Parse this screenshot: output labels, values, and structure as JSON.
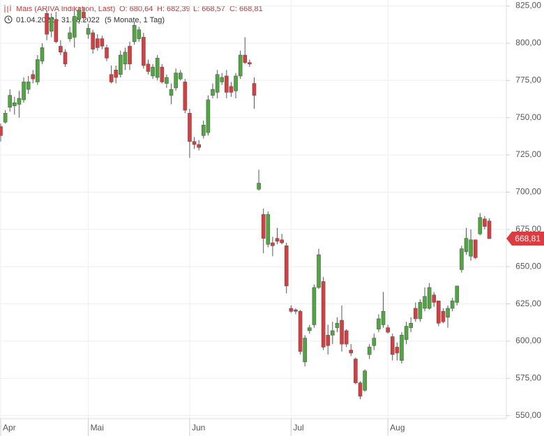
{
  "chart_data": {
    "type": "candlestick",
    "title": "Mais (ARIVA Indikation, Last)",
    "ohlc_labels": [
      "O: 680,64",
      "H: 682,39",
      "L: 668,57",
      "C: 668,81"
    ],
    "subtitle": "01.04.2022 - 31.08.2022",
    "period": "(5 Monate, 1 Tag)",
    "last_price_label": "668,81",
    "up_color": "#4caa3c",
    "down_color": "#df3b3f",
    "grid": true,
    "ylim": [
      548,
      829
    ],
    "yticks": [
      {
        "value": 550,
        "label": "550,00"
      },
      {
        "value": 575,
        "label": "575,00"
      },
      {
        "value": 600,
        "label": "600,00"
      },
      {
        "value": 625,
        "label": "625,00"
      },
      {
        "value": 650,
        "label": "650,00"
      },
      {
        "value": 675,
        "label": "675,00"
      },
      {
        "value": 700,
        "label": "700,00"
      },
      {
        "value": 725,
        "label": "725,00"
      },
      {
        "value": 750,
        "label": "750,00"
      },
      {
        "value": 775,
        "label": "775,00"
      },
      {
        "value": 800,
        "label": "800,00"
      },
      {
        "value": 825,
        "label": "825,00"
      }
    ],
    "xlim": [
      -0.15,
      109.7
    ],
    "xticks": [
      {
        "value": 0,
        "label": "Apr"
      },
      {
        "value": 19,
        "label": "Mai"
      },
      {
        "value": 41,
        "label": "Jun"
      },
      {
        "value": 63,
        "label": "Jul"
      },
      {
        "value": 84,
        "label": "Aug"
      }
    ],
    "open": [
      744,
      747,
      757,
      758,
      759,
      762,
      769,
      779,
      774,
      788,
      820,
      808,
      816,
      798,
      794,
      803,
      804,
      816,
      821,
      806,
      807,
      803,
      803,
      797,
      779,
      782,
      779,
      786,
      798,
      801,
      803,
      804,
      786,
      778,
      777,
      784,
      773,
      765,
      770,
      776,
      774,
      753,
      734,
      732,
      738,
      740,
      765,
      767,
      774,
      778,
      771,
      768,
      778,
      792,
      787,
      773,
      702,
      685,
      665,
      666,
      669,
      668,
      664,
      622,
      621,
      620,
      586,
      607,
      611,
      636,
      640,
      604,
      604,
      609,
      614,
      607,
      594,
      588,
      572,
      567,
      591,
      597,
      608,
      611,
      609,
      603,
      596,
      587,
      601,
      609,
      622,
      615,
      622,
      622,
      631,
      627,
      620,
      616,
      622,
      626,
      648,
      660,
      657,
      668,
      672,
      682,
      680.64
    ],
    "high": [
      746,
      755,
      769,
      764,
      768,
      777,
      778,
      782,
      792,
      800,
      822,
      820,
      821,
      802,
      796,
      811,
      822,
      824,
      824,
      813,
      809,
      806,
      805,
      799,
      785,
      785,
      795,
      797,
      801,
      814,
      811,
      807,
      789,
      786,
      792,
      786,
      779,
      773,
      783,
      782,
      776,
      756,
      737,
      735,
      748,
      765,
      773,
      782,
      780,
      782,
      774,
      780,
      795,
      804,
      789,
      777,
      715,
      689,
      687,
      670,
      676,
      672,
      666,
      624,
      622,
      621,
      604,
      611,
      638,
      662,
      643,
      611,
      613,
      616,
      624,
      608,
      598,
      589,
      573,
      581,
      598,
      605,
      618,
      633,
      611,
      605,
      599,
      606,
      613,
      616,
      626,
      628,
      636,
      639,
      633,
      627,
      622,
      624,
      629,
      637,
      664,
      676,
      675,
      668,
      686,
      684,
      682.39
    ],
    "low": [
      734,
      746,
      754,
      752,
      750,
      760,
      766,
      773,
      772,
      786,
      802,
      804,
      800,
      792,
      784,
      801,
      797,
      813,
      814,
      803,
      793,
      795,
      796,
      788,
      773,
      773,
      777,
      782,
      782,
      799,
      801,
      783,
      779,
      776,
      775,
      773,
      770,
      759,
      768,
      775,
      753,
      723,
      729,
      728,
      736,
      738,
      763,
      763,
      772,
      763,
      764,
      763,
      776,
      786,
      784,
      756,
      701,
      659,
      663,
      657,
      665,
      665,
      632,
      619,
      618,
      591,
      583,
      605,
      609,
      635,
      594,
      591,
      598,
      606,
      593,
      596,
      590,
      571,
      561,
      566,
      588,
      594,
      606,
      609,
      605,
      587,
      587,
      585,
      598,
      606,
      613,
      613,
      620,
      621,
      623,
      610,
      612,
      609,
      620,
      624,
      646,
      658,
      654,
      655,
      671,
      675,
      668.57
    ],
    "close": [
      738,
      753,
      765,
      760,
      763,
      774,
      774,
      776,
      789,
      797,
      806,
      817,
      801,
      794,
      786,
      807,
      818,
      822,
      817,
      810,
      796,
      797,
      798,
      790,
      774,
      777,
      792,
      794,
      786,
      812,
      809,
      785,
      781,
      784,
      790,
      774,
      777,
      769,
      780,
      780,
      755,
      734,
      732,
      730,
      745,
      762,
      769,
      779,
      777,
      767,
      767,
      778,
      792,
      787,
      786,
      765,
      706,
      669,
      685,
      664,
      667,
      666,
      637,
      620,
      620,
      593,
      602,
      609,
      636,
      658,
      596,
      597,
      607,
      612,
      598,
      598,
      592,
      572,
      563,
      580,
      596,
      602,
      615,
      620,
      606,
      591,
      592,
      604,
      610,
      612,
      615,
      626,
      630,
      636,
      626,
      612,
      613,
      622,
      627,
      637,
      662,
      669,
      668,
      656,
      683,
      677,
      668.81
    ]
  }
}
